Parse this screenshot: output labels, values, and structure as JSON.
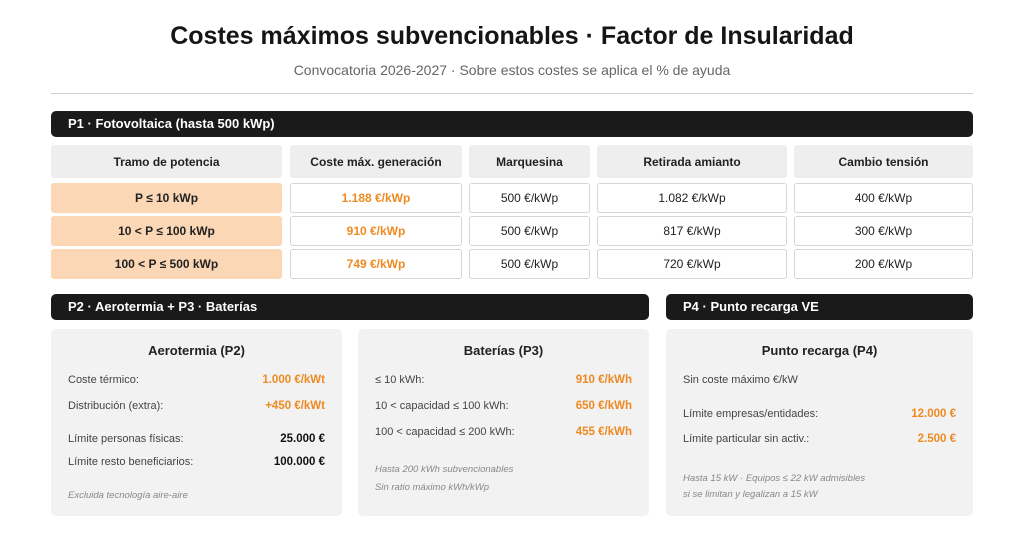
{
  "header": {
    "title": "Costes máximos subvencionables · Factor de Insularidad",
    "subtitle": "Convocatoria 2026-2027 · Sobre estos costes se aplica el % de ayuda"
  },
  "p1": {
    "title": "P1 · Fotovoltaica (hasta 500 kWp)",
    "columns": [
      "Tramo de potencia",
      "Coste máx. generación",
      "Marquesina",
      "Retirada amianto",
      "Cambio tensión"
    ],
    "rows": [
      [
        "P ≤ 10 kWp",
        "1.188 €/kWp",
        "500 €/kWp",
        "1.082 €/kWp",
        "400 €/kWp"
      ],
      [
        "10 < P ≤ 100 kWp",
        "910 €/kWp",
        "500 €/kWp",
        "817 €/kWp",
        "300 €/kWp"
      ],
      [
        "100 < P ≤ 500 kWp",
        "749 €/kWp",
        "500 €/kWp",
        "720 €/kWp",
        "200 €/kWp"
      ]
    ]
  },
  "p2p3": {
    "title": "P2 · Aerotermia + P3 · Baterías",
    "aerotermia": {
      "title": "Aerotermia (P2)",
      "rows": [
        {
          "label": "Coste térmico:",
          "value": "1.000 €/kWt"
        },
        {
          "label": "Distribución (extra):",
          "value": "+450 €/kWt"
        },
        {
          "label": "Límite personas físicas:",
          "value": "25.000 €"
        },
        {
          "label": "Límite resto beneficiarios:",
          "value": "100.000 €"
        }
      ],
      "note": "Excluida tecnología aire-aire"
    },
    "baterias": {
      "title": "Baterías (P3)",
      "rows": [
        {
          "label": "≤ 10 kWh:",
          "value": "910 €/kWh"
        },
        {
          "label": "10 < capacidad ≤ 100 kWh:",
          "value": "650 €/kWh"
        },
        {
          "label": "100 < capacidad ≤ 200 kWh:",
          "value": "455 €/kWh"
        }
      ],
      "notes": [
        "Hasta 200 kWh subvencionables",
        "Sin ratio máximo kWh/kWp"
      ]
    }
  },
  "p4": {
    "title": "P4 · Punto recarga VE",
    "card": {
      "title": "Punto recarga (P4)",
      "line": "Sin coste máximo €/kW",
      "rows": [
        {
          "label": "Límite empresas/entidades:",
          "value": "12.000 €"
        },
        {
          "label": "Límite particular sin activ.:",
          "value": "2.500 €"
        }
      ],
      "notes": [
        "Hasta 15 kW · Equipos ≤ 22 kW admisibles",
        "si se limitan y legalizan a 15 kW"
      ]
    }
  },
  "colors": {
    "accent": "#ee8a22",
    "tramo_bg": "#fbd7b5",
    "bar_bg": "#1a1a1a",
    "card_bg": "#f2f2f2"
  }
}
